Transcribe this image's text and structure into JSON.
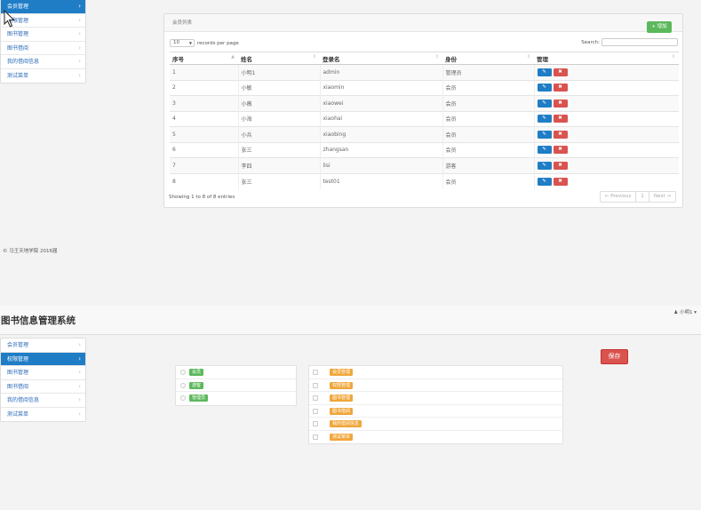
{
  "top_sidebar": {
    "items": [
      {
        "label": "会员管理",
        "active": true
      },
      {
        "label": "权限管理",
        "active": false
      },
      {
        "label": "图书管理",
        "active": false
      },
      {
        "label": "图书借阅",
        "active": false
      },
      {
        "label": "我的借阅信息",
        "active": false
      },
      {
        "label": "测试菜单",
        "active": false
      }
    ]
  },
  "panel": {
    "title": "会员列表",
    "add_button": "+ 增加",
    "page_size": "10",
    "records_per_page": "records per page",
    "search_label": "Search:",
    "columns": [
      "序号",
      "姓名",
      "登录名",
      "身份",
      "管理"
    ],
    "rows": [
      [
        "1",
        "小明1",
        "admin",
        "管理员"
      ],
      [
        "2",
        "小敏",
        "xiaomin",
        "会员"
      ],
      [
        "3",
        "小薇",
        "xiaowei",
        "会员"
      ],
      [
        "4",
        "小海",
        "xiaohai",
        "会员"
      ],
      [
        "5",
        "小兵",
        "xiaobing",
        "会员"
      ],
      [
        "6",
        "张三",
        "zhangsan",
        "会员"
      ],
      [
        "7",
        "李四",
        "lisi",
        "游客"
      ],
      [
        "8",
        "张三",
        "test01",
        "会员"
      ]
    ],
    "info": "Showing 1 to 8 of 8 entries",
    "pager": {
      "prev": "← Previous",
      "page": "1",
      "next": "Next →"
    }
  },
  "copyright": "© 马王天地学院 2016届",
  "app": {
    "title": "图书信息管理系统",
    "user": "小明1"
  },
  "bottom_sidebar": {
    "items": [
      {
        "label": "会员管理",
        "active": false
      },
      {
        "label": "权限管理",
        "active": true
      },
      {
        "label": "图书管理",
        "active": false
      },
      {
        "label": "图书借阅",
        "active": false
      },
      {
        "label": "我的借阅信息",
        "active": false
      },
      {
        "label": "测试菜单",
        "active": false
      }
    ]
  },
  "save_button": "保存",
  "roles": [
    "会员",
    "游客",
    "管理员"
  ],
  "permissions": [
    "会员管理",
    "权限管理",
    "图书管理",
    "图书借阅",
    "我的借阅信息",
    "测试菜单"
  ],
  "colors": {
    "primary": "#1f7dc6",
    "success": "#5cb85c",
    "danger": "#d9534f",
    "warning": "#f0a63a"
  }
}
